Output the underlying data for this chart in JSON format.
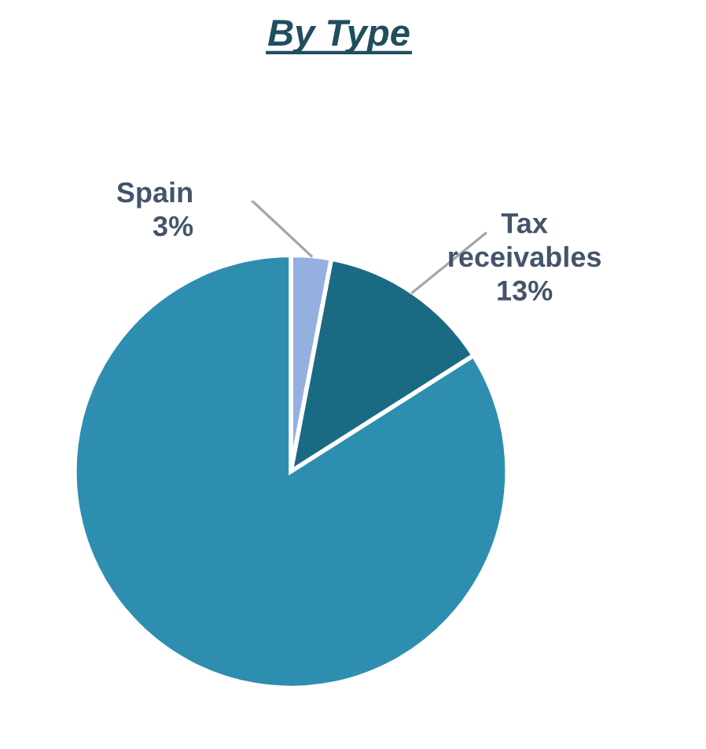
{
  "chart_data": {
    "type": "pie",
    "title": "By Type",
    "categories": [
      "Spain",
      "Tax receivables",
      null
    ],
    "values": [
      3,
      13,
      84
    ],
    "value_labels": [
      "3%",
      "13%",
      null
    ],
    "colors": [
      "#95b0e0",
      "#1b6a84",
      "#2e8eb0"
    ]
  }
}
